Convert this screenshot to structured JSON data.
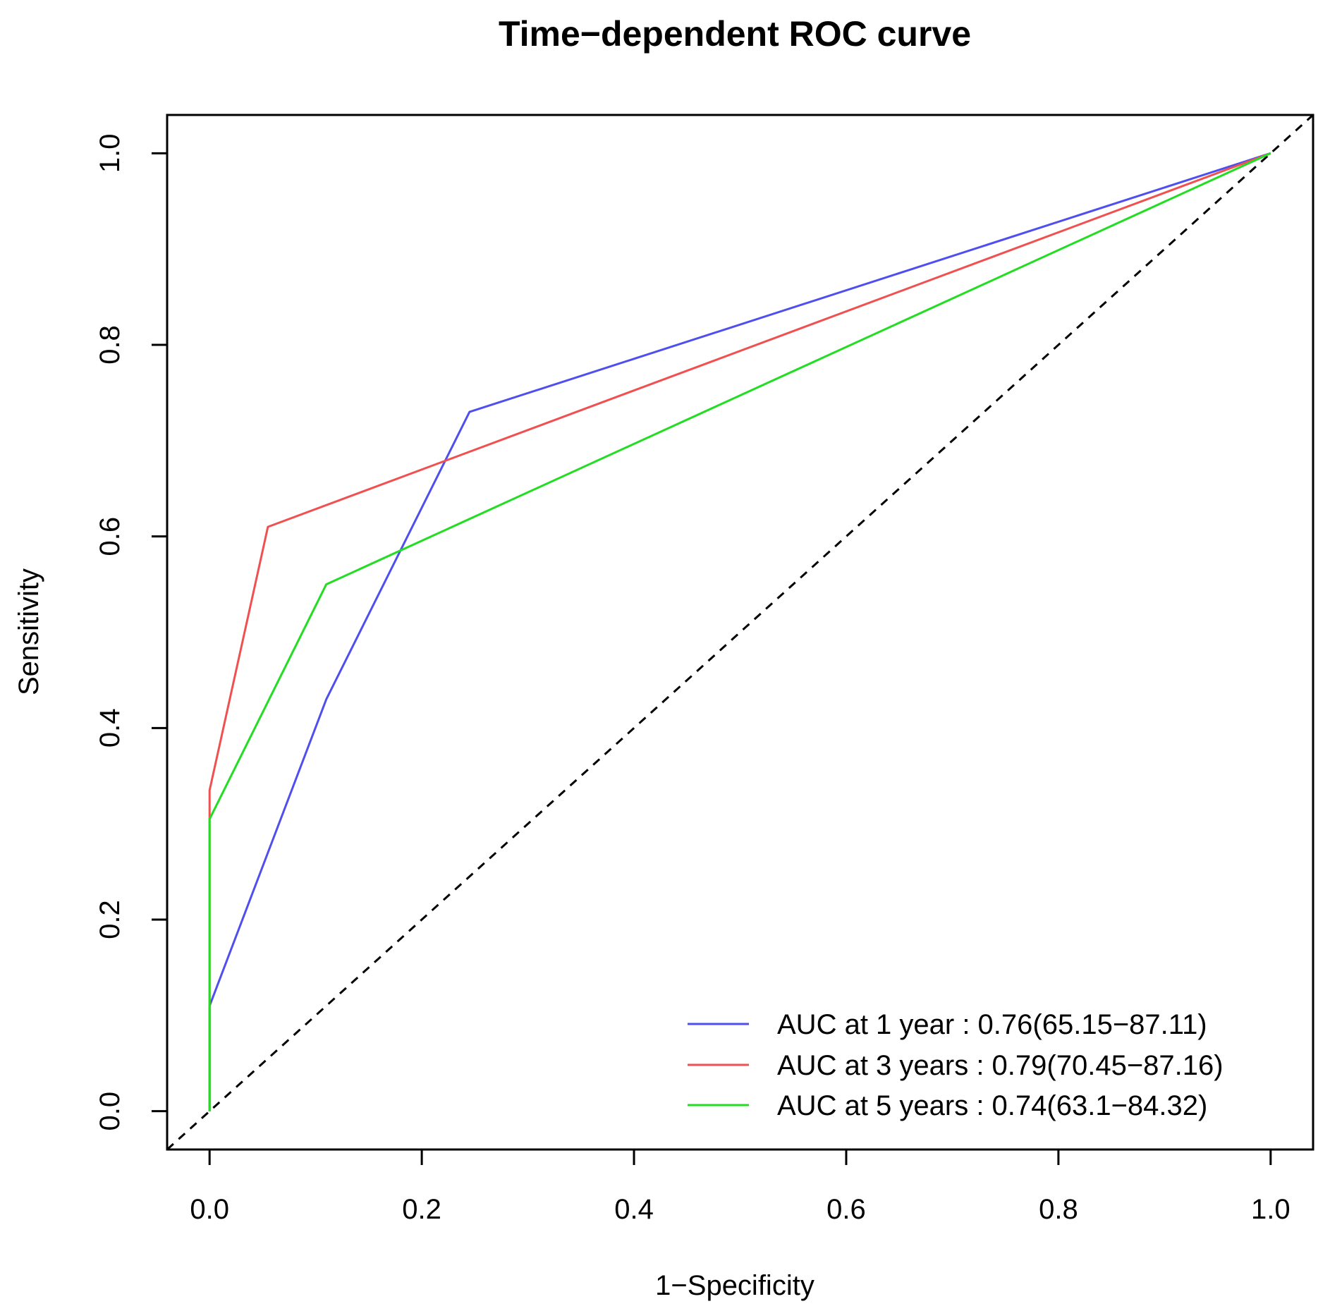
{
  "chart_data": {
    "type": "line",
    "title": "Time−dependent ROC curve",
    "xlabel": "1−Specificity",
    "ylabel": "Sensitivity",
    "xlim": [
      -0.04,
      1.04
    ],
    "ylim": [
      -0.04,
      1.04
    ],
    "x_ticks": [
      "0.0",
      "0.2",
      "0.4",
      "0.6",
      "0.8",
      "1.0"
    ],
    "y_ticks": [
      "0.0",
      "0.2",
      "0.4",
      "0.6",
      "0.8",
      "1.0"
    ],
    "grid": false,
    "legend_position": "bottom-right",
    "reference_line": {
      "style": "dashed",
      "color": "#000000",
      "points": [
        [
          0,
          0
        ],
        [
          1,
          1
        ]
      ]
    },
    "series": [
      {
        "name": "AUC at 1 year : 0.76(65.15−87.11)",
        "color": "#4F4FF0",
        "x": [
          0,
          0,
          0.11,
          0.245,
          1
        ],
        "y": [
          0,
          0.11,
          0.43,
          0.73,
          1
        ]
      },
      {
        "name": "AUC at 3 years : 0.79(70.45−87.16)",
        "color": "#F05050",
        "x": [
          0,
          0,
          0.055,
          1
        ],
        "y": [
          0,
          0.335,
          0.61,
          1
        ]
      },
      {
        "name": "AUC at 5 years : 0.74(63.1−84.32)",
        "color": "#22DD22",
        "x": [
          0,
          0,
          0.11,
          1
        ],
        "y": [
          0,
          0.305,
          0.55,
          1
        ]
      }
    ]
  }
}
